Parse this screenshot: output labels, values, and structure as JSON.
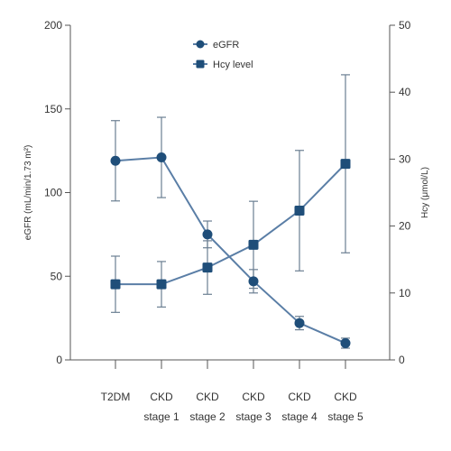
{
  "chart_data": {
    "type": "line",
    "categories": [
      [
        "T2DM",
        ""
      ],
      [
        "CKD",
        "stage 1"
      ],
      [
        "CKD",
        "stage 2"
      ],
      [
        "CKD",
        "stage 3"
      ],
      [
        "CKD",
        "stage 4"
      ],
      [
        "CKD",
        "stage 5"
      ]
    ],
    "left_axis": {
      "label": "eGFR (mL/min/1.73 m²)",
      "ylim": [
        0,
        200
      ],
      "ticks": [
        0,
        50,
        100,
        150,
        200
      ],
      "tick_labels": [
        "0",
        "50",
        "100",
        "150",
        "200"
      ]
    },
    "right_axis": {
      "label": "Hcy (μmol/L)",
      "ylim": [
        0,
        50
      ],
      "ticks": [
        0,
        10,
        20,
        30,
        40,
        50
      ],
      "tick_labels": [
        "0",
        "10",
        "20",
        "30",
        "40",
        "50"
      ]
    },
    "series": [
      {
        "name": "eGFR",
        "axis": "left",
        "marker": "circle",
        "color": "#1f4e79",
        "values": [
          119,
          121,
          75,
          47,
          22,
          10
        ],
        "error": [
          24,
          24,
          8,
          7,
          4,
          3
        ]
      },
      {
        "name": "Hcy level",
        "axis": "right",
        "marker": "square",
        "color": "#1f4e79",
        "values": [
          11.3,
          11.3,
          13.8,
          17.2,
          22.3,
          29.3
        ],
        "error": [
          4.2,
          3.4,
          4.0,
          6.5,
          9.0,
          13.3
        ]
      }
    ],
    "legend": "top-center",
    "grid": false
  }
}
